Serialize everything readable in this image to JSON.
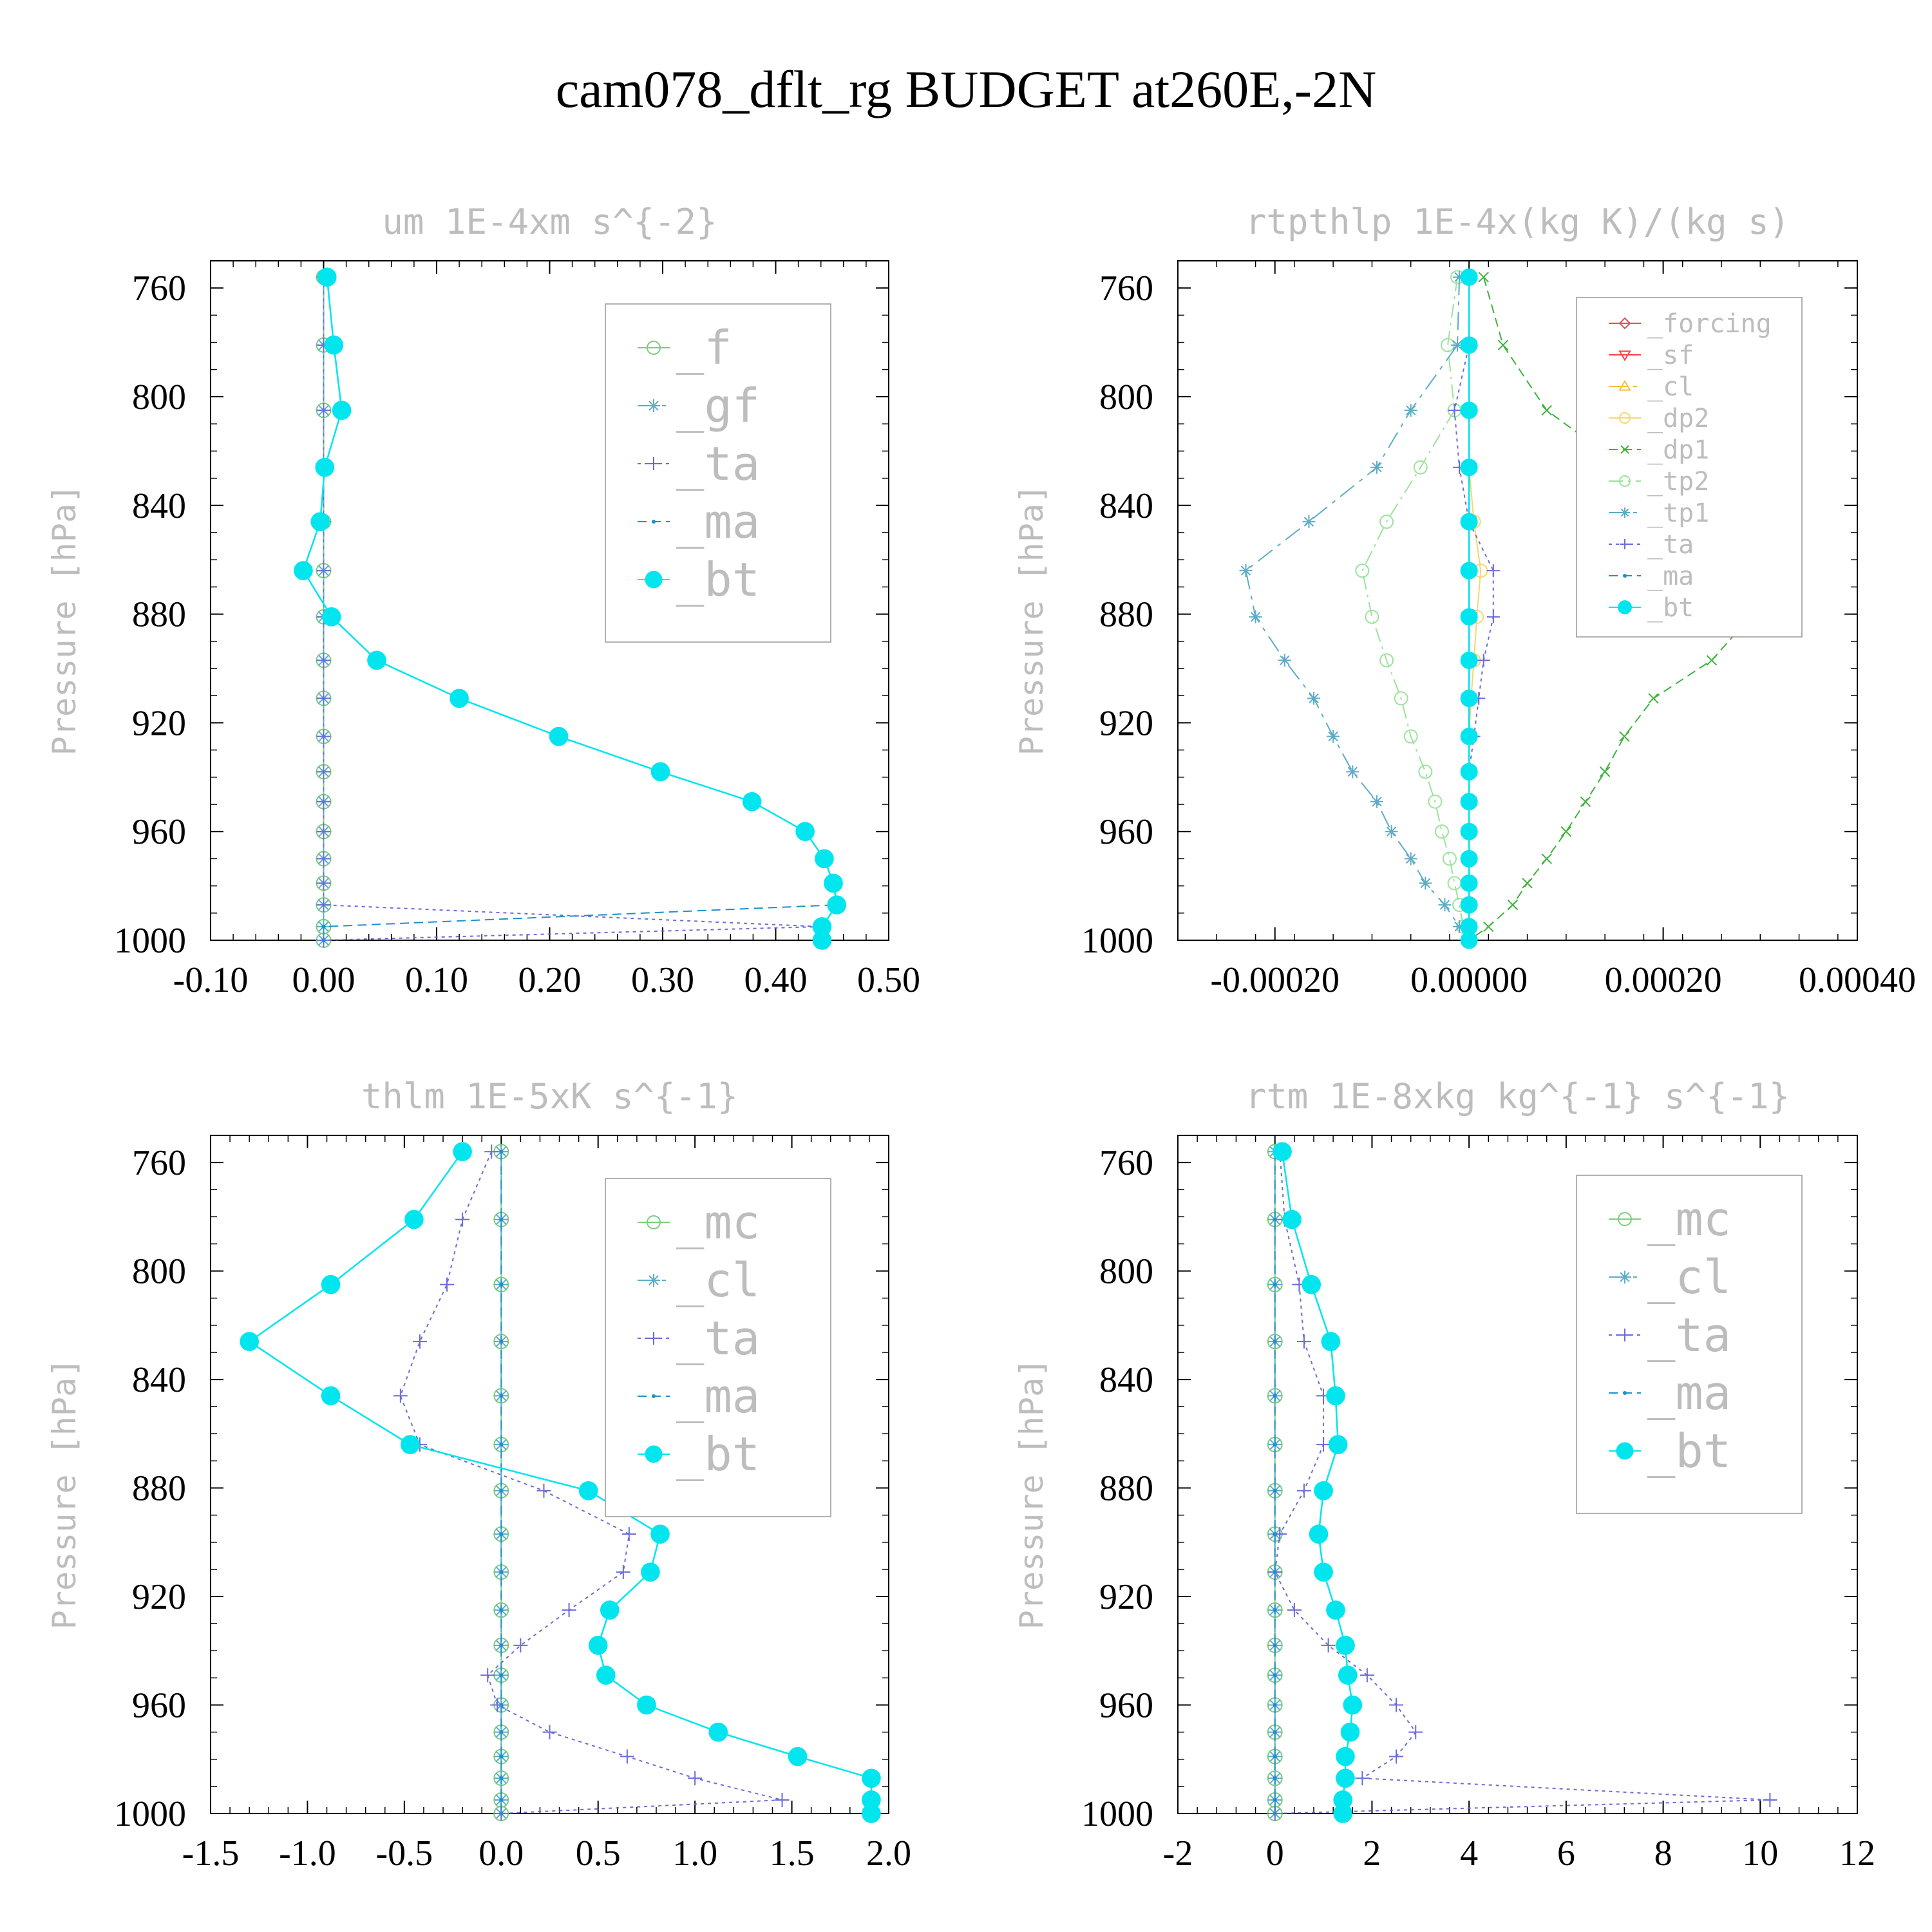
{
  "title": "cam078_dflt_rg  BUDGET at260E,-2N",
  "chart_data": [
    {
      "type": "line",
      "title": "um   1E-4xm s^{-2}",
      "ylabel": "Pressure [hPa]",
      "xlim": [
        -0.1,
        0.5
      ],
      "ylim": [
        1000,
        750
      ],
      "xticks": [
        "-0.10",
        "0.00",
        "0.10",
        "0.20",
        "0.30",
        "0.40",
        "0.50"
      ],
      "yticks": [
        "760",
        "800",
        "840",
        "880",
        "920",
        "960",
        "1000"
      ],
      "legend_position": "top-right",
      "pressure": [
        756,
        781,
        805,
        826,
        846,
        864,
        881,
        897,
        911,
        925,
        938,
        949,
        960,
        970,
        979,
        987,
        995,
        1000
      ],
      "series": [
        {
          "name": "_f",
          "color": "#7ccd7c",
          "marker": "circle-open",
          "values": [
            0,
            0,
            0,
            0,
            0,
            0,
            0,
            0,
            0,
            0,
            0,
            0,
            0,
            0,
            0,
            0,
            0,
            0
          ]
        },
        {
          "name": "_gf",
          "color": "#5cacc8",
          "marker": "star",
          "values": [
            0,
            0,
            0,
            0,
            0,
            0,
            0,
            0,
            0,
            0,
            0,
            0,
            0,
            0,
            0,
            0,
            0,
            0
          ]
        },
        {
          "name": "_ta",
          "color": "#6b6bd8",
          "marker": "plus",
          "values": [
            0,
            0,
            0,
            0,
            0,
            0,
            0,
            0,
            0,
            0,
            0,
            0,
            0,
            0,
            0,
            0,
            0.44,
            0.0
          ]
        },
        {
          "name": "_ma",
          "color": "#1e90cc",
          "marker": "dot",
          "values": [
            0.003,
            0.009,
            0.016,
            0.001,
            -0.003,
            -0.018,
            0.007,
            0.047,
            0.12,
            0.208,
            0.298,
            0.379,
            0.426,
            0.443,
            0.451,
            0.454,
            0.0,
            0.0
          ]
        },
        {
          "name": "_bt",
          "color": "#00e5ee",
          "marker": "circle-filled",
          "values": [
            0.003,
            0.009,
            0.016,
            0.001,
            -0.003,
            -0.018,
            0.007,
            0.047,
            0.12,
            0.208,
            0.298,
            0.379,
            0.426,
            0.443,
            0.451,
            0.454,
            0.441,
            0.441
          ]
        }
      ]
    },
    {
      "type": "line",
      "title": "rtpthlp   1E-4x(kg K)/(kg s)",
      "ylabel": "Pressure [hPa]",
      "xlim": [
        -0.0003,
        0.0004
      ],
      "ylim": [
        1000,
        750
      ],
      "xticks": [
        "-0.00020",
        "0.00000",
        "0.00020",
        "0.00040"
      ],
      "yticks": [
        "760",
        "800",
        "840",
        "880",
        "920",
        "960",
        "1000"
      ],
      "legend_position": "top-right",
      "pressure": [
        756,
        781,
        805,
        826,
        846,
        864,
        881,
        897,
        911,
        925,
        938,
        949,
        960,
        970,
        979,
        987,
        995,
        1000
      ],
      "series": [
        {
          "name": "_forcing",
          "color": "#e05050",
          "marker": "diamond-open",
          "values": [
            0,
            0,
            0,
            0,
            0,
            0,
            0,
            0,
            0,
            0,
            0,
            0,
            0,
            0,
            0,
            0,
            0,
            0
          ]
        },
        {
          "name": "_sf",
          "color": "#ff4040",
          "marker": "triangle-down",
          "values": [
            0,
            0,
            0,
            0,
            0,
            0,
            0,
            0,
            0,
            0,
            0,
            0,
            0,
            0,
            0,
            0,
            0,
            0
          ]
        },
        {
          "name": "_cl",
          "color": "#f0c040",
          "marker": "triangle-up",
          "values": [
            0,
            0,
            0,
            0,
            0,
            0,
            0,
            0,
            0,
            0,
            0,
            0,
            0,
            0,
            0,
            0,
            0,
            0
          ]
        },
        {
          "name": "_dp2",
          "color": "#f5d76e",
          "marker": "circle-open",
          "values": [
            0,
            0,
            0,
            0,
            5e-06,
            1.2e-05,
            8e-06,
            5e-06,
            2e-06,
            0,
            0,
            0,
            0,
            0,
            0,
            0,
            0,
            0
          ]
        },
        {
          "name": "_dp1",
          "color": "#3cb33c",
          "marker": "cross",
          "values": [
            1.5e-05,
            3.5e-05,
            8e-05,
            0.00016,
            0.00023,
            0.00031,
            0.00029,
            0.00025,
            0.00019,
            0.00016,
            0.00014,
            0.00012,
            0.0001,
            8e-05,
            6e-05,
            4.5e-05,
            2e-05,
            0
          ]
        },
        {
          "name": "_tp2",
          "color": "#9be39b",
          "marker": "circle-open",
          "values": [
            -1.2e-05,
            -2.2e-05,
            -1.5e-05,
            -5e-05,
            -8.5e-05,
            -0.00011,
            -0.0001,
            -8.5e-05,
            -7e-05,
            -6e-05,
            -4.5e-05,
            -3.5e-05,
            -2.8e-05,
            -2e-05,
            -1.5e-05,
            -1e-05,
            -6e-06,
            0
          ]
        },
        {
          "name": "_tp1",
          "color": "#5cacc8",
          "marker": "star",
          "values": [
            -1e-05,
            -1.2e-05,
            -6e-05,
            -9.5e-05,
            -0.000165,
            -0.00023,
            -0.00022,
            -0.00019,
            -0.00016,
            -0.00014,
            -0.00012,
            -9.5e-05,
            -8e-05,
            -6e-05,
            -4.5e-05,
            -2.5e-05,
            -1e-05,
            0
          ]
        },
        {
          "name": "_ta",
          "color": "#6b6bd8",
          "marker": "plus",
          "values": [
            0,
            0,
            -1.5e-05,
            -1e-05,
            0,
            2.5e-05,
            2.5e-05,
            1.5e-05,
            1e-05,
            5e-06,
            0,
            0,
            0,
            0,
            0,
            0,
            0,
            0
          ]
        },
        {
          "name": "_ma",
          "color": "#1e90cc",
          "marker": "dot",
          "values": [
            0,
            0,
            0,
            0,
            0,
            0,
            0,
            0,
            0,
            0,
            0,
            0,
            0,
            0,
            0,
            0,
            0,
            0
          ]
        },
        {
          "name": "_bt",
          "color": "#00e5ee",
          "marker": "circle-filled",
          "values": [
            0,
            0,
            0,
            0,
            0,
            0,
            0,
            0,
            0,
            0,
            0,
            0,
            0,
            0,
            0,
            0,
            0,
            0
          ]
        }
      ]
    },
    {
      "type": "line",
      "title": "thlm   1E-5xK s^{-1}",
      "ylabel": "Pressure [hPa]",
      "xlim": [
        -1.5,
        2.0
      ],
      "ylim": [
        1000,
        750
      ],
      "xticks": [
        "-1.5",
        "-1.0",
        "-0.5",
        "0.0",
        "0.5",
        "1.0",
        "1.5",
        "2.0"
      ],
      "yticks": [
        "760",
        "800",
        "840",
        "880",
        "920",
        "960",
        "1000"
      ],
      "legend_position": "top-right",
      "pressure": [
        756,
        781,
        805,
        826,
        846,
        864,
        881,
        897,
        911,
        925,
        938,
        949,
        960,
        970,
        979,
        987,
        995,
        1000
      ],
      "series": [
        {
          "name": "_mc",
          "color": "#7ccd7c",
          "marker": "circle-open",
          "values": [
            0,
            0,
            0,
            0,
            0,
            0,
            0,
            0,
            0,
            0,
            0,
            0,
            0,
            0,
            0,
            0,
            0,
            0
          ]
        },
        {
          "name": "_cl",
          "color": "#5cacc8",
          "marker": "star",
          "values": [
            0,
            0,
            0,
            0,
            0,
            0,
            0,
            0,
            0,
            0,
            0,
            0,
            0,
            0,
            0,
            0,
            0,
            0
          ]
        },
        {
          "name": "_ta",
          "color": "#6b6bd8",
          "marker": "plus",
          "values": [
            -0.05,
            -0.2,
            -0.28,
            -0.42,
            -0.52,
            -0.42,
            0.22,
            0.66,
            0.63,
            0.35,
            0.1,
            -0.07,
            -0.02,
            0.25,
            0.65,
            1.0,
            1.45,
            0.0
          ]
        },
        {
          "name": "_ma",
          "color": "#1e90cc",
          "marker": "dot",
          "values": [
            0,
            0,
            0,
            0,
            0,
            0,
            0,
            0,
            0,
            0,
            0,
            0,
            0,
            0,
            0,
            0,
            0,
            0
          ]
        },
        {
          "name": "_bt",
          "color": "#00e5ee",
          "marker": "circle-filled",
          "values": [
            -0.2,
            -0.45,
            -0.88,
            -1.3,
            -0.88,
            -0.47,
            0.45,
            0.82,
            0.77,
            0.56,
            0.5,
            0.54,
            0.75,
            1.12,
            1.53,
            1.91,
            1.91,
            1.91
          ]
        }
      ]
    },
    {
      "type": "line",
      "title": "rtm   1E-8xkg kg^{-1} s^{-1}",
      "ylabel": "Pressure [hPa]",
      "xlim": [
        -2,
        12
      ],
      "ylim": [
        1000,
        750
      ],
      "xticks": [
        "-2",
        "0",
        "2",
        "4",
        "6",
        "8",
        "10",
        "12"
      ],
      "yticks": [
        "760",
        "800",
        "840",
        "880",
        "920",
        "960",
        "1000"
      ],
      "legend_position": "top-right",
      "pressure": [
        756,
        781,
        805,
        826,
        846,
        864,
        881,
        897,
        911,
        925,
        938,
        949,
        960,
        970,
        979,
        987,
        995,
        1000
      ],
      "series": [
        {
          "name": "_mc",
          "color": "#7ccd7c",
          "marker": "circle-open",
          "values": [
            0,
            0,
            0,
            0,
            0,
            0,
            0,
            0,
            0,
            0,
            0,
            0,
            0,
            0,
            0,
            0,
            0,
            0
          ]
        },
        {
          "name": "_cl",
          "color": "#5cacc8",
          "marker": "star",
          "values": [
            0,
            0,
            0,
            0,
            0,
            0,
            0,
            0,
            0,
            0,
            0,
            0,
            0,
            0,
            0,
            0,
            0,
            0
          ]
        },
        {
          "name": "_ta",
          "color": "#6b6bd8",
          "marker": "plus",
          "values": [
            0.1,
            0.2,
            0.5,
            0.6,
            1.0,
            1.0,
            0.6,
            0.1,
            0.0,
            0.4,
            1.1,
            1.9,
            2.5,
            2.9,
            2.5,
            1.8,
            10.2,
            0.0
          ]
        },
        {
          "name": "_ma",
          "color": "#1e90cc",
          "marker": "dot",
          "values": [
            0,
            0,
            0,
            0,
            0,
            0,
            0,
            0,
            0,
            0,
            0,
            0,
            0,
            0,
            0,
            0,
            0,
            0
          ]
        },
        {
          "name": "_bt",
          "color": "#00e5ee",
          "marker": "circle-filled",
          "values": [
            0.15,
            0.35,
            0.75,
            1.15,
            1.25,
            1.3,
            1.0,
            0.9,
            1.0,
            1.25,
            1.45,
            1.5,
            1.6,
            1.55,
            1.45,
            1.45,
            1.4,
            1.4
          ]
        }
      ]
    }
  ]
}
